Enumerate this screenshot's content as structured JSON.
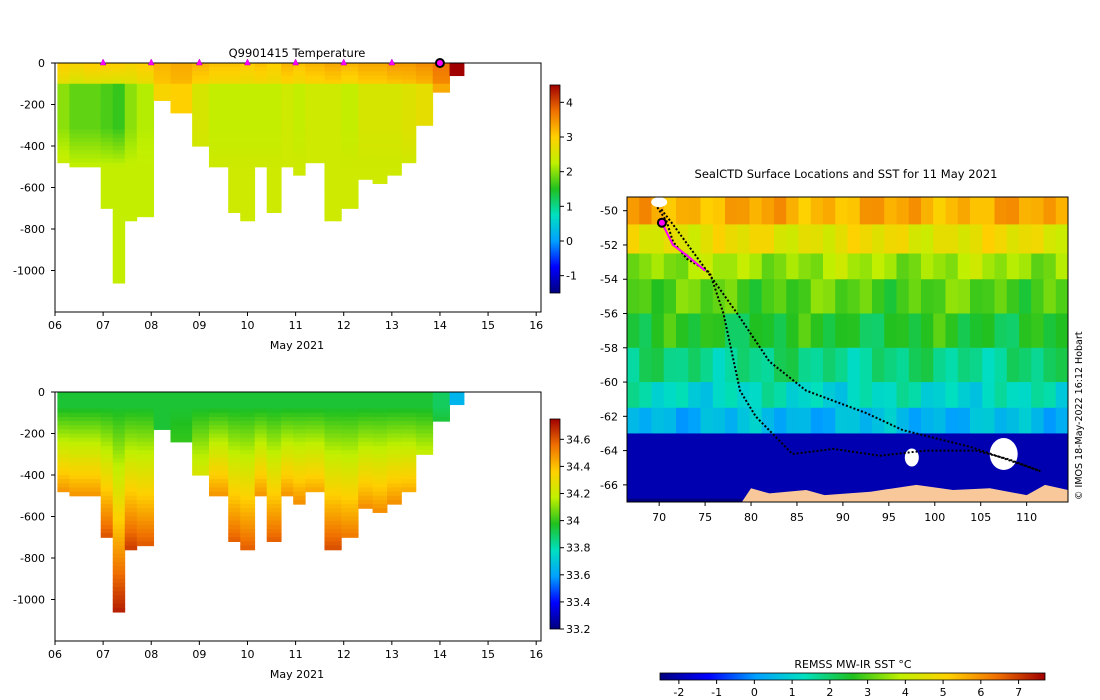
{
  "chart_data": [
    {
      "type": "heatmap",
      "title": "Q9901415  Temperature",
      "xlabel": "May 2021",
      "ylabel": "",
      "x_ticks": [
        "06",
        "07",
        "08",
        "09",
        "10",
        "11",
        "12",
        "13",
        "14",
        "15",
        "16"
      ],
      "y_ticks": [
        0,
        -200,
        -400,
        -600,
        -800,
        -1000
      ],
      "ylim": [
        -1200,
        0
      ],
      "xlim": [
        6,
        16.1
      ],
      "colorbar": {
        "min": -1.5,
        "max": 4.5,
        "ticks": [
          -1,
          0,
          1,
          2,
          3,
          4
        ]
      },
      "profiles": [
        {
          "day": 6.05,
          "max_depth": 480,
          "t_top": 3.0,
          "t_mid": 2.0,
          "t_bottom": 2.4
        },
        {
          "day": 6.3,
          "max_depth": 500,
          "t_top": 2.9,
          "t_mid": 1.8,
          "t_bottom": 2.3
        },
        {
          "day": 6.6,
          "max_depth": 500,
          "t_top": 3.0,
          "t_mid": 1.8,
          "t_bottom": 2.3
        },
        {
          "day": 6.95,
          "max_depth": 700,
          "t_top": 3.0,
          "t_mid": 1.7,
          "t_bottom": 2.3
        },
        {
          "day": 7.2,
          "max_depth": 1050,
          "t_top": 3.0,
          "t_mid": 1.6,
          "t_bottom": 2.3
        },
        {
          "day": 7.45,
          "max_depth": 760,
          "t_top": 2.9,
          "t_mid": 2.0,
          "t_bottom": 2.3
        },
        {
          "day": 7.7,
          "max_depth": 730,
          "t_top": 3.0,
          "t_mid": 2.2,
          "t_bottom": 2.3
        },
        {
          "day": 8.05,
          "max_depth": 180,
          "t_top": 3.2,
          "t_mid": 2.9,
          "t_bottom": 2.7
        },
        {
          "day": 8.4,
          "max_depth": 230,
          "t_top": 3.3,
          "t_mid": 3.0,
          "t_bottom": 2.8
        },
        {
          "day": 8.85,
          "max_depth": 400,
          "t_top": 3.2,
          "t_mid": 2.5,
          "t_bottom": 2.4
        },
        {
          "day": 9.2,
          "max_depth": 500,
          "t_top": 3.1,
          "t_mid": 2.3,
          "t_bottom": 2.4
        },
        {
          "day": 9.6,
          "max_depth": 720,
          "t_top": 3.1,
          "t_mid": 2.3,
          "t_bottom": 2.4
        },
        {
          "day": 9.85,
          "max_depth": 760,
          "t_top": 3.0,
          "t_mid": 2.3,
          "t_bottom": 2.4
        },
        {
          "day": 10.15,
          "max_depth": 500,
          "t_top": 3.1,
          "t_mid": 2.3,
          "t_bottom": 2.4
        },
        {
          "day": 10.4,
          "max_depth": 720,
          "t_top": 3.0,
          "t_mid": 2.3,
          "t_bottom": 2.4
        },
        {
          "day": 10.7,
          "max_depth": 500,
          "t_top": 3.2,
          "t_mid": 2.4,
          "t_bottom": 2.4
        },
        {
          "day": 10.95,
          "max_depth": 530,
          "t_top": 3.1,
          "t_mid": 2.3,
          "t_bottom": 2.4
        },
        {
          "day": 11.2,
          "max_depth": 470,
          "t_top": 3.2,
          "t_mid": 2.4,
          "t_bottom": 2.4
        },
        {
          "day": 11.6,
          "max_depth": 750,
          "t_top": 3.3,
          "t_mid": 2.4,
          "t_bottom": 2.4
        },
        {
          "day": 11.95,
          "max_depth": 700,
          "t_top": 3.2,
          "t_mid": 2.3,
          "t_bottom": 2.4
        },
        {
          "day": 12.3,
          "max_depth": 550,
          "t_top": 3.3,
          "t_mid": 2.5,
          "t_bottom": 2.4
        },
        {
          "day": 12.6,
          "max_depth": 570,
          "t_top": 3.3,
          "t_mid": 2.5,
          "t_bottom": 2.4
        },
        {
          "day": 12.9,
          "max_depth": 530,
          "t_top": 3.4,
          "t_mid": 2.5,
          "t_bottom": 2.4
        },
        {
          "day": 13.2,
          "max_depth": 480,
          "t_top": 3.4,
          "t_mid": 2.6,
          "t_bottom": 2.4
        },
        {
          "day": 13.5,
          "max_depth": 300,
          "t_top": 3.5,
          "t_mid": 2.7,
          "t_bottom": 2.5
        },
        {
          "day": 13.85,
          "max_depth": 130,
          "t_top": 3.7,
          "t_mid": 3.3,
          "t_bottom": 3.0
        },
        {
          "day": 14.2,
          "max_depth": 50,
          "t_top": 4.5,
          "t_mid": 4.5,
          "t_bottom": 4.5
        }
      ],
      "surface_markers_days": [
        7,
        8,
        9,
        10,
        11,
        12,
        13
      ],
      "current_marker_day": 14
    },
    {
      "type": "heatmap",
      "title": "",
      "xlabel": "May 2021",
      "x_ticks": [
        "06",
        "07",
        "08",
        "09",
        "10",
        "11",
        "12",
        "13",
        "14",
        "15",
        "16"
      ],
      "y_ticks": [
        0,
        -200,
        -400,
        -600,
        -800,
        -1000
      ],
      "ylim": [
        -1200,
        0
      ],
      "xlim": [
        6,
        16.1
      ],
      "colorbar": {
        "min": 33.2,
        "max": 34.75,
        "ticks": [
          "33.2",
          "33.4",
          "33.6",
          "33.8",
          "34",
          "34.2",
          "34.4",
          "34.6"
        ]
      },
      "profiles": [
        {
          "day": 6.05,
          "max_depth": 480,
          "s_top": 33.95,
          "s_bottom": 34.5
        },
        {
          "day": 6.3,
          "max_depth": 500,
          "s_top": 33.95,
          "s_bottom": 34.5
        },
        {
          "day": 6.6,
          "max_depth": 500,
          "s_top": 33.95,
          "s_bottom": 34.5
        },
        {
          "day": 6.95,
          "max_depth": 700,
          "s_top": 33.95,
          "s_bottom": 34.62
        },
        {
          "day": 7.2,
          "max_depth": 1050,
          "s_top": 33.95,
          "s_bottom": 34.7
        },
        {
          "day": 7.45,
          "max_depth": 760,
          "s_top": 33.95,
          "s_bottom": 34.66
        },
        {
          "day": 7.7,
          "max_depth": 730,
          "s_top": 33.95,
          "s_bottom": 34.6
        },
        {
          "day": 8.05,
          "max_depth": 180,
          "s_top": 33.95,
          "s_bottom": 33.95
        },
        {
          "day": 8.4,
          "max_depth": 230,
          "s_top": 33.95,
          "s_bottom": 34.0
        },
        {
          "day": 8.85,
          "max_depth": 400,
          "s_top": 33.95,
          "s_bottom": 34.25
        },
        {
          "day": 9.2,
          "max_depth": 500,
          "s_top": 33.95,
          "s_bottom": 34.5
        },
        {
          "day": 9.6,
          "max_depth": 720,
          "s_top": 33.95,
          "s_bottom": 34.6
        },
        {
          "day": 9.85,
          "max_depth": 760,
          "s_top": 33.95,
          "s_bottom": 34.6
        },
        {
          "day": 10.15,
          "max_depth": 500,
          "s_top": 33.95,
          "s_bottom": 34.5
        },
        {
          "day": 10.4,
          "max_depth": 720,
          "s_top": 33.95,
          "s_bottom": 34.6
        },
        {
          "day": 10.7,
          "max_depth": 500,
          "s_top": 33.95,
          "s_bottom": 34.5
        },
        {
          "day": 10.95,
          "max_depth": 530,
          "s_top": 33.95,
          "s_bottom": 34.5
        },
        {
          "day": 11.2,
          "max_depth": 470,
          "s_top": 33.95,
          "s_bottom": 34.45
        },
        {
          "day": 11.6,
          "max_depth": 750,
          "s_top": 33.95,
          "s_bottom": 34.62
        },
        {
          "day": 11.95,
          "max_depth": 700,
          "s_top": 33.95,
          "s_bottom": 34.55
        },
        {
          "day": 12.3,
          "max_depth": 550,
          "s_top": 33.95,
          "s_bottom": 34.5
        },
        {
          "day": 12.6,
          "max_depth": 570,
          "s_top": 33.95,
          "s_bottom": 34.5
        },
        {
          "day": 12.9,
          "max_depth": 530,
          "s_top": 33.95,
          "s_bottom": 34.5
        },
        {
          "day": 13.2,
          "max_depth": 480,
          "s_top": 33.95,
          "s_bottom": 34.45
        },
        {
          "day": 13.5,
          "max_depth": 300,
          "s_top": 33.95,
          "s_bottom": 34.2
        },
        {
          "day": 13.85,
          "max_depth": 130,
          "s_top": 33.9,
          "s_bottom": 33.95
        },
        {
          "day": 14.2,
          "max_depth": 50,
          "s_top": 33.65,
          "s_bottom": 33.65
        }
      ]
    },
    {
      "type": "heatmap",
      "title": "SealCTD Surface Locations and SST for 11 May 2021",
      "x_ticks": [
        "70",
        "75",
        "80",
        "85",
        "90",
        "95",
        "100",
        "105",
        "110"
      ],
      "y_ticks": [
        "-50",
        "-52",
        "-54",
        "-56",
        "-58",
        "-60",
        "-62",
        "-64",
        "-66"
      ],
      "xlim": [
        66.5,
        114.5
      ],
      "ylim": [
        -67,
        -49.2
      ],
      "sst_bands": [
        {
          "lat_top": -49.2,
          "lat_bottom": -50.8,
          "sst": 5.6
        },
        {
          "lat_top": -50.8,
          "lat_bottom": -52.5,
          "sst": 4.6
        },
        {
          "lat_top": -52.5,
          "lat_bottom": -54.0,
          "sst": 3.6
        },
        {
          "lat_top": -54.0,
          "lat_bottom": -56.0,
          "sst": 3.0
        },
        {
          "lat_top": -56.0,
          "lat_bottom": -58.0,
          "sst": 2.5
        },
        {
          "lat_top": -58.0,
          "lat_bottom": -60.0,
          "sst": 1.8
        },
        {
          "lat_top": -60.0,
          "lat_bottom": -61.5,
          "sst": 1.2
        },
        {
          "lat_top": -61.5,
          "lat_bottom": -63.0,
          "sst": 0.5
        },
        {
          "lat_top": -63.0,
          "lat_bottom": -67.0,
          "sst": -2.0
        }
      ],
      "track": [
        {
          "lon": 69.8,
          "lat": -49.8
        },
        {
          "lon": 70.8,
          "lat": -50.6
        },
        {
          "lon": 71.5,
          "lat": -51.8
        },
        {
          "lon": 73.0,
          "lat": -52.8
        },
        {
          "lon": 75.5,
          "lat": -53.6
        },
        {
          "lon": 77.0,
          "lat": -56.0
        },
        {
          "lon": 78.0,
          "lat": -58.5
        },
        {
          "lon": 78.8,
          "lat": -60.5
        },
        {
          "lon": 80.5,
          "lat": -62.0
        },
        {
          "lon": 84.5,
          "lat": -64.2
        },
        {
          "lon": 89.0,
          "lat": -63.9
        },
        {
          "lon": 94.0,
          "lat": -64.3
        },
        {
          "lon": 99.0,
          "lat": -64.0
        },
        {
          "lon": 104.5,
          "lat": -64.0
        },
        {
          "lon": 108.0,
          "lat": -64.5
        },
        {
          "lon": 111.5,
          "lat": -65.2
        },
        {
          "lon": 104.0,
          "lat": -63.8
        },
        {
          "lon": 96.5,
          "lat": -62.8
        },
        {
          "lon": 92.5,
          "lat": -61.8
        },
        {
          "lon": 89.5,
          "lat": -61.2
        },
        {
          "lon": 86.0,
          "lat": -60.5
        },
        {
          "lon": 82.0,
          "lat": -58.8
        },
        {
          "lon": 78.5,
          "lat": -56.0
        },
        {
          "lon": 74.5,
          "lat": -53.0
        },
        {
          "lon": 71.5,
          "lat": -50.8
        },
        {
          "lon": 70.2,
          "lat": -49.9
        }
      ],
      "highlight_track": [
        {
          "lon": 70.3,
          "lat": -50.7
        },
        {
          "lon": 71.5,
          "lat": -52.0
        },
        {
          "lon": 73.0,
          "lat": -52.6
        },
        {
          "lon": 75.0,
          "lat": -53.5
        }
      ],
      "current_position": {
        "lon": 70.3,
        "lat": -50.7
      },
      "copyright": "© IMOS 18-May-2022 16:12 Hobart",
      "colorbar": {
        "label": "REMSS MW-IR SST °C",
        "min": -2.5,
        "max": 7.7,
        "ticks": [
          "-2",
          "-1",
          "0",
          "1",
          "2",
          "3",
          "4",
          "5",
          "6",
          "7"
        ]
      }
    }
  ]
}
